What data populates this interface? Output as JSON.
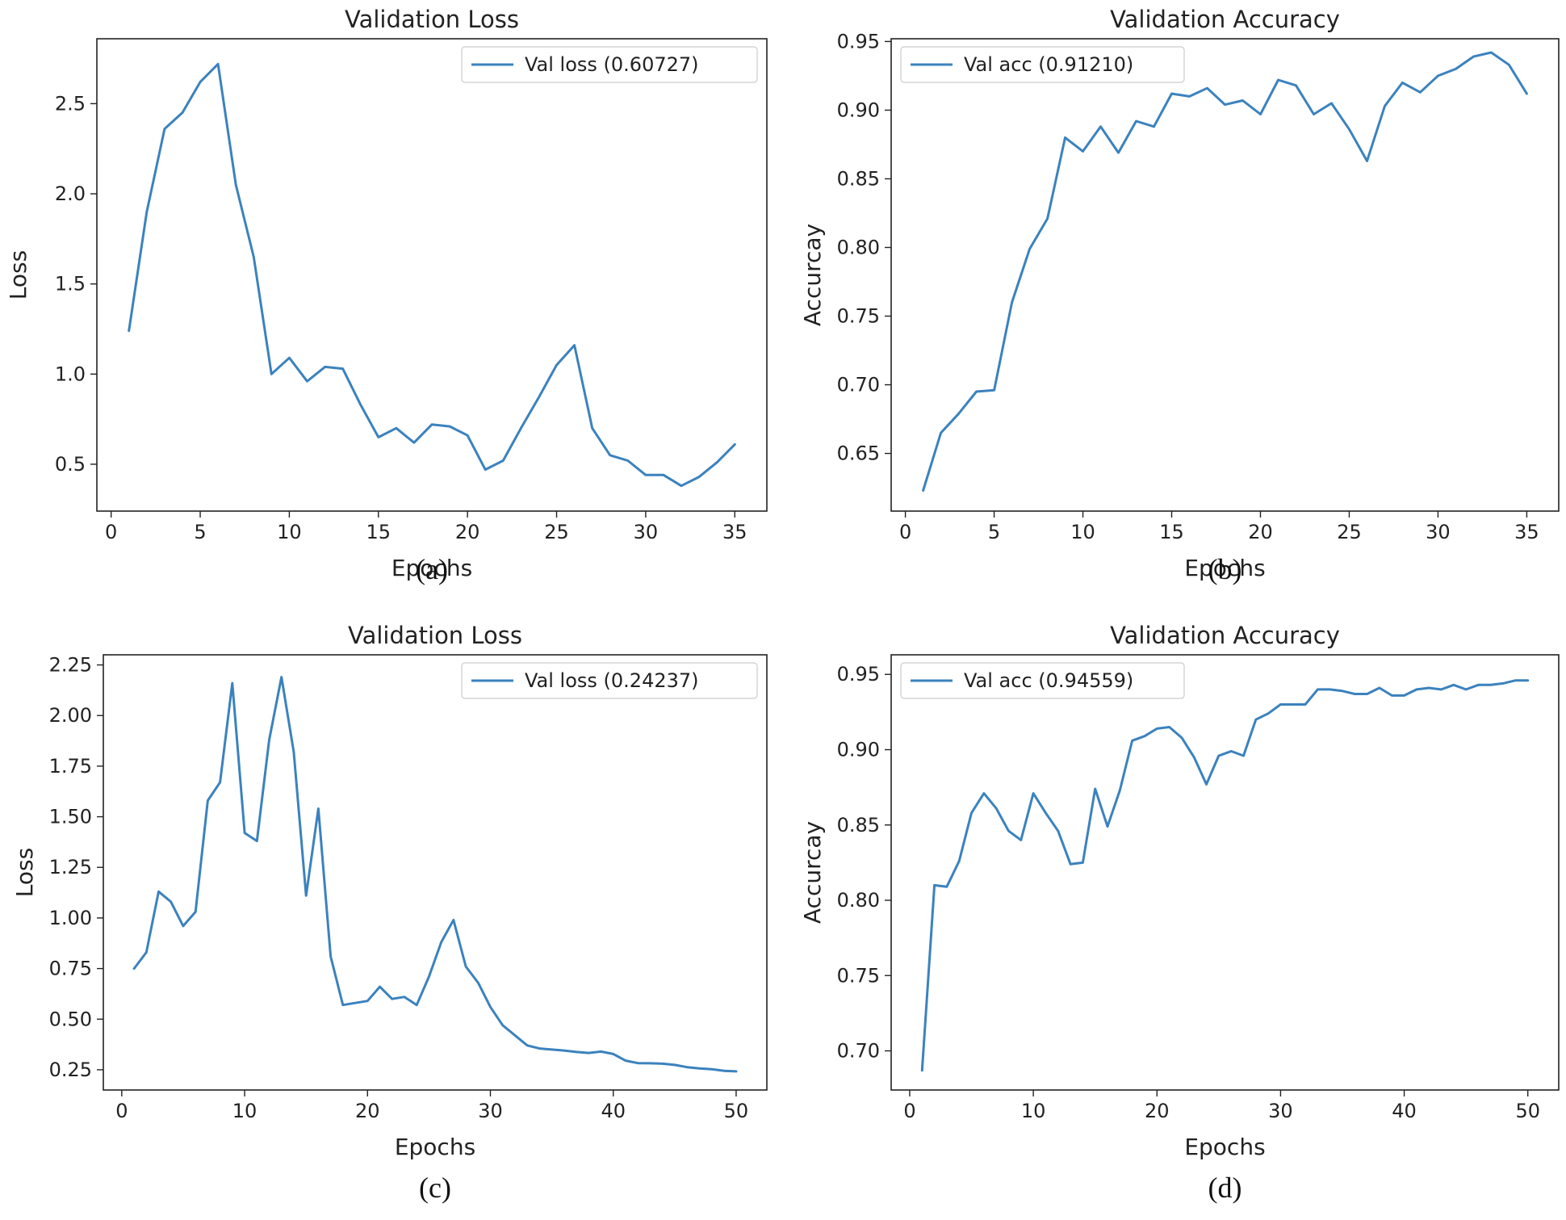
{
  "figure": {
    "line_color": "#3b82be"
  },
  "chart_data": [
    {
      "id": "a",
      "type": "line",
      "caption": "(a)",
      "title": "Validation Loss",
      "xlabel": "Epochs",
      "ylabel": "Loss",
      "xlim": [
        -0.8,
        36.8
      ],
      "ylim": [
        0.24,
        2.86
      ],
      "xticks": [
        0,
        5,
        10,
        15,
        20,
        25,
        30,
        35
      ],
      "yticks": [
        0.5,
        1.0,
        1.5,
        2.0,
        2.5
      ],
      "ytick_labels": [
        "0.5",
        "1.0",
        "1.5",
        "2.0",
        "2.5"
      ],
      "legend_position": "top-right",
      "series": [
        {
          "name": "Val loss (0.60727)",
          "x": [
            1,
            2,
            3,
            4,
            5,
            6,
            7,
            8,
            9,
            10,
            11,
            12,
            13,
            14,
            15,
            16,
            17,
            18,
            19,
            20,
            21,
            22,
            23,
            24,
            25,
            26,
            27,
            28,
            29,
            30,
            31,
            32,
            33,
            34,
            35
          ],
          "values": [
            1.24,
            1.9,
            2.36,
            2.45,
            2.62,
            2.72,
            2.05,
            1.65,
            1.0,
            1.09,
            0.96,
            1.04,
            1.03,
            0.83,
            0.65,
            0.7,
            0.62,
            0.72,
            0.71,
            0.66,
            0.47,
            0.52,
            0.7,
            0.87,
            1.05,
            1.16,
            0.7,
            0.55,
            0.52,
            0.44,
            0.44,
            0.38,
            0.43,
            0.51,
            0.61
          ]
        }
      ]
    },
    {
      "id": "b",
      "type": "line",
      "caption": "(b)",
      "title": "Validation Accuracy",
      "xlabel": "Epochs",
      "ylabel": "Accurcay",
      "xlim": [
        -0.8,
        36.8
      ],
      "ylim": [
        0.608,
        0.952
      ],
      "xticks": [
        0,
        5,
        10,
        15,
        20,
        25,
        30,
        35
      ],
      "yticks": [
        0.65,
        0.7,
        0.75,
        0.8,
        0.85,
        0.9,
        0.95
      ],
      "ytick_labels": [
        "0.65",
        "0.70",
        "0.75",
        "0.80",
        "0.85",
        "0.90",
        "0.95"
      ],
      "legend_position": "top-left",
      "series": [
        {
          "name": "Val acc (0.91210)",
          "x": [
            1,
            2,
            3,
            4,
            5,
            6,
            7,
            8,
            9,
            10,
            11,
            12,
            13,
            14,
            15,
            16,
            17,
            18,
            19,
            20,
            21,
            22,
            23,
            24,
            25,
            26,
            27,
            28,
            29,
            30,
            31,
            32,
            33,
            34,
            35
          ],
          "values": [
            0.623,
            0.665,
            0.679,
            0.695,
            0.696,
            0.76,
            0.799,
            0.821,
            0.88,
            0.87,
            0.888,
            0.869,
            0.892,
            0.888,
            0.912,
            0.91,
            0.916,
            0.904,
            0.907,
            0.897,
            0.922,
            0.918,
            0.897,
            0.905,
            0.886,
            0.863,
            0.903,
            0.92,
            0.913,
            0.925,
            0.93,
            0.939,
            0.942,
            0.933,
            0.912
          ]
        }
      ]
    },
    {
      "id": "c",
      "type": "line",
      "caption": "(c)",
      "title": "Validation Loss",
      "xlabel": "Epochs",
      "ylabel": "Loss",
      "xlim": [
        -1.5,
        52.5
      ],
      "ylim": [
        0.15,
        2.3
      ],
      "xticks": [
        0,
        10,
        20,
        30,
        40,
        50
      ],
      "yticks": [
        0.25,
        0.5,
        0.75,
        1.0,
        1.25,
        1.5,
        1.75,
        2.0,
        2.25
      ],
      "ytick_labels": [
        "0.25",
        "0.50",
        "0.75",
        "1.00",
        "1.25",
        "1.50",
        "1.75",
        "2.00",
        "2.25"
      ],
      "legend_position": "top-right",
      "series": [
        {
          "name": "Val loss (0.24237)",
          "x": [
            1,
            2,
            3,
            4,
            5,
            6,
            7,
            8,
            9,
            10,
            11,
            12,
            13,
            14,
            15,
            16,
            17,
            18,
            19,
            20,
            21,
            22,
            23,
            24,
            25,
            26,
            27,
            28,
            29,
            30,
            31,
            32,
            33,
            34,
            35,
            36,
            37,
            38,
            39,
            40,
            41,
            42,
            43,
            44,
            45,
            46,
            47,
            48,
            49,
            50
          ],
          "values": [
            0.75,
            0.83,
            1.13,
            1.08,
            0.96,
            1.03,
            1.58,
            1.67,
            2.16,
            1.42,
            1.38,
            1.88,
            2.19,
            1.82,
            1.11,
            1.54,
            0.81,
            0.57,
            0.58,
            0.59,
            0.66,
            0.6,
            0.61,
            0.57,
            0.71,
            0.88,
            0.99,
            0.76,
            0.68,
            0.56,
            0.47,
            0.42,
            0.37,
            0.355,
            0.35,
            0.345,
            0.338,
            0.333,
            0.34,
            0.328,
            0.295,
            0.283,
            0.282,
            0.28,
            0.274,
            0.263,
            0.257,
            0.253,
            0.245,
            0.242
          ]
        }
      ]
    },
    {
      "id": "d",
      "type": "line",
      "caption": "(d)",
      "title": "Validation Accuracy",
      "xlabel": "Epochs",
      "ylabel": "Accurcay",
      "xlim": [
        -1.5,
        52.5
      ],
      "ylim": [
        0.674,
        0.963
      ],
      "xticks": [
        0,
        10,
        20,
        30,
        40,
        50
      ],
      "yticks": [
        0.7,
        0.75,
        0.8,
        0.85,
        0.9,
        0.95
      ],
      "ytick_labels": [
        "0.70",
        "0.75",
        "0.80",
        "0.85",
        "0.90",
        "0.95"
      ],
      "legend_position": "top-left",
      "series": [
        {
          "name": "Val acc (0.94559)",
          "x": [
            1,
            2,
            3,
            4,
            5,
            6,
            7,
            8,
            9,
            10,
            11,
            12,
            13,
            14,
            15,
            16,
            17,
            18,
            19,
            20,
            21,
            22,
            23,
            24,
            25,
            26,
            27,
            28,
            29,
            30,
            31,
            32,
            33,
            34,
            35,
            36,
            37,
            38,
            39,
            40,
            41,
            42,
            43,
            44,
            45,
            46,
            47,
            48,
            49,
            50
          ],
          "values": [
            0.687,
            0.81,
            0.809,
            0.826,
            0.858,
            0.871,
            0.861,
            0.846,
            0.84,
            0.871,
            0.858,
            0.846,
            0.824,
            0.825,
            0.874,
            0.849,
            0.873,
            0.906,
            0.909,
            0.914,
            0.915,
            0.908,
            0.895,
            0.877,
            0.896,
            0.899,
            0.896,
            0.92,
            0.924,
            0.93,
            0.93,
            0.93,
            0.94,
            0.94,
            0.939,
            0.937,
            0.937,
            0.941,
            0.936,
            0.936,
            0.94,
            0.941,
            0.94,
            0.943,
            0.94,
            0.943,
            0.943,
            0.944,
            0.946,
            0.946
          ]
        }
      ]
    }
  ]
}
